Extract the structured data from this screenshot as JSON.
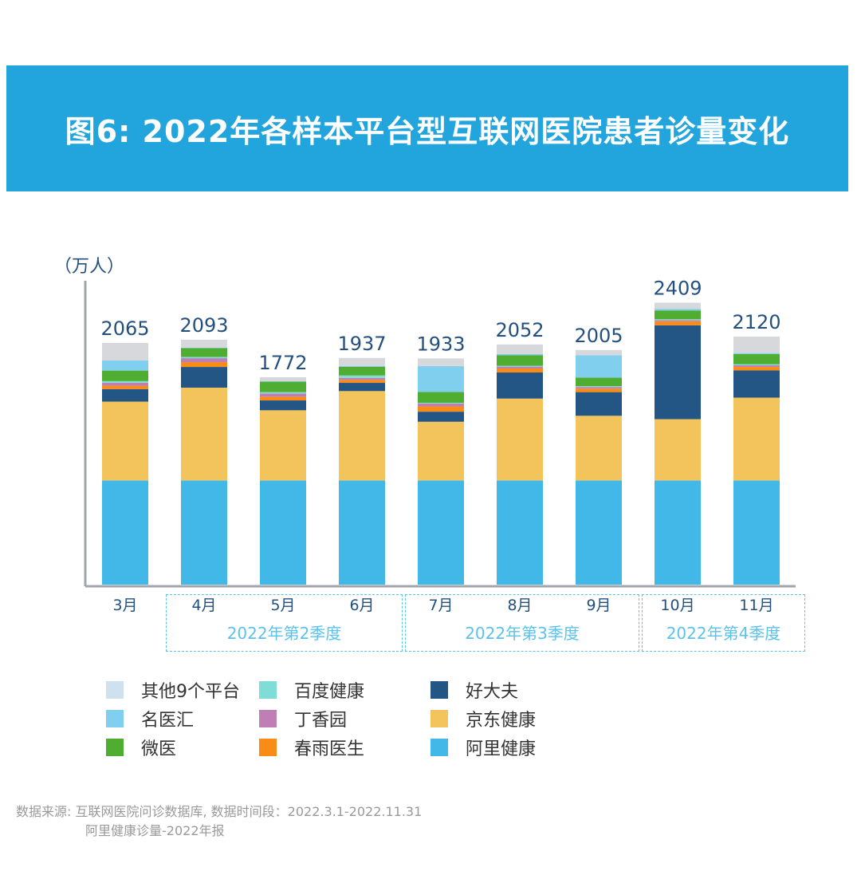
{
  "title": "图6: 2022年各样本平台型互联网医院患者诊量变化",
  "chart_data": {
    "type": "bar",
    "stacked": true,
    "title": "图6: 2022年各样本平台型互联网医院患者诊量变化",
    "ylabel": "（万人）",
    "xlabel": "",
    "categories": [
      "3月",
      "4月",
      "5月",
      "6月",
      "7月",
      "8月",
      "9月",
      "10月",
      "11月"
    ],
    "totals": [
      2065,
      2093,
      1772,
      1937,
      1933,
      2052,
      2005,
      2409,
      2120
    ],
    "ylim": [
      0,
      2600
    ],
    "grid": false,
    "legend_position": "bottom",
    "groups": [
      {
        "label": "2022年第2季度",
        "months": [
          "4月",
          "5月",
          "6月"
        ]
      },
      {
        "label": "2022年第3季度",
        "months": [
          "7月",
          "8月",
          "9月"
        ]
      },
      {
        "label": "2022年第4季度",
        "months": [
          "10月",
          "11月"
        ]
      }
    ],
    "series": [
      {
        "name": "阿里健康",
        "color": "#42b8e8",
        "values": [
          890,
          890,
          890,
          890,
          890,
          890,
          890,
          890,
          890
        ]
      },
      {
        "name": "京东健康",
        "color": "#f3c45c",
        "values": [
          674,
          793,
          600,
          764,
          502,
          700,
          553,
          524,
          708
        ]
      },
      {
        "name": "好大夫",
        "color": "#235585",
        "values": [
          107,
          177,
          84,
          70,
          86,
          223,
          202,
          802,
          232
        ]
      },
      {
        "name": "春雨医生",
        "color": "#f98b17",
        "values": [
          29,
          41,
          32,
          25,
          45,
          34,
          30,
          34,
          30
        ]
      },
      {
        "name": "丁香园",
        "color": "#c07fb4",
        "values": [
          25,
          34,
          27,
          18,
          24,
          16,
          14,
          11,
          14
        ]
      },
      {
        "name": "百度健康",
        "color": "#7fdcd6",
        "values": [
          14,
          11,
          12,
          20,
          7,
          7,
          7,
          7,
          9
        ]
      },
      {
        "name": "微医",
        "color": "#4fae32",
        "values": [
          90,
          75,
          89,
          75,
          93,
          91,
          73,
          75,
          87
        ]
      },
      {
        "name": "名医汇",
        "color": "#80cfee",
        "values": [
          86,
          4,
          4,
          7,
          220,
          9,
          191,
          14,
          9
        ]
      },
      {
        "name": "其他9个平台",
        "color": "#d6d8dc",
        "legend_color": "#cfe1ef",
        "values": [
          150,
          68,
          34,
          68,
          66,
          82,
          45,
          52,
          141
        ]
      }
    ]
  },
  "legend_order": [
    "其他9个平台",
    "百度健康",
    "好大夫",
    "名医汇",
    "丁香园",
    "京东健康",
    "微医",
    "春雨医生",
    "阿里健康"
  ],
  "source_line1": "数据来源: 互联网医院问诊数据库, 数据时间段：2022.3.1-2022.11.31",
  "source_line2": "阿里健康诊量-2022年报"
}
